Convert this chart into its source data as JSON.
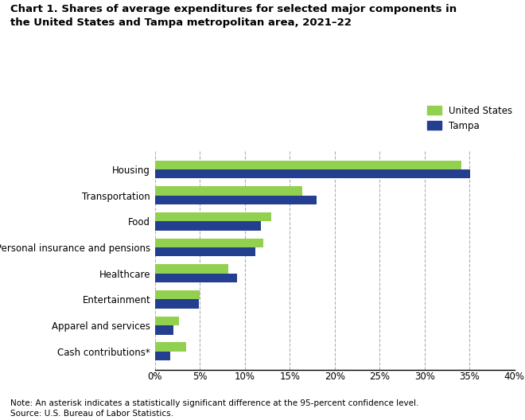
{
  "title": "Chart 1. Shares of average expenditures for selected major components in\nthe United States and Tampa metropolitan area, 2021–22",
  "categories": [
    "Housing",
    "Transportation",
    "Food",
    "Personal insurance and pensions",
    "Healthcare",
    "Entertainment",
    "Apparel and services",
    "Cash contributions*"
  ],
  "us_values": [
    34.1,
    16.4,
    12.9,
    12.1,
    8.2,
    5.0,
    2.7,
    3.5
  ],
  "tampa_values": [
    35.1,
    18.0,
    11.8,
    11.2,
    9.1,
    4.9,
    2.1,
    1.7
  ],
  "us_color": "#92d050",
  "tampa_color": "#243f8f",
  "legend_us": "United States",
  "legend_tampa": "Tampa",
  "xlim": [
    0,
    40
  ],
  "xtick_vals": [
    0,
    5,
    10,
    15,
    20,
    25,
    30,
    35,
    40
  ],
  "xtick_labels": [
    "0%",
    "5%",
    "10%",
    "15%",
    "20%",
    "25%",
    "30%",
    "35%",
    "40%"
  ],
  "note": "Note: An asterisk indicates a statistically significant difference at the 95-percent confidence level.\nSource: U.S. Bureau of Labor Statistics.",
  "background_color": "#ffffff",
  "grid_color": "#b0b0b0"
}
